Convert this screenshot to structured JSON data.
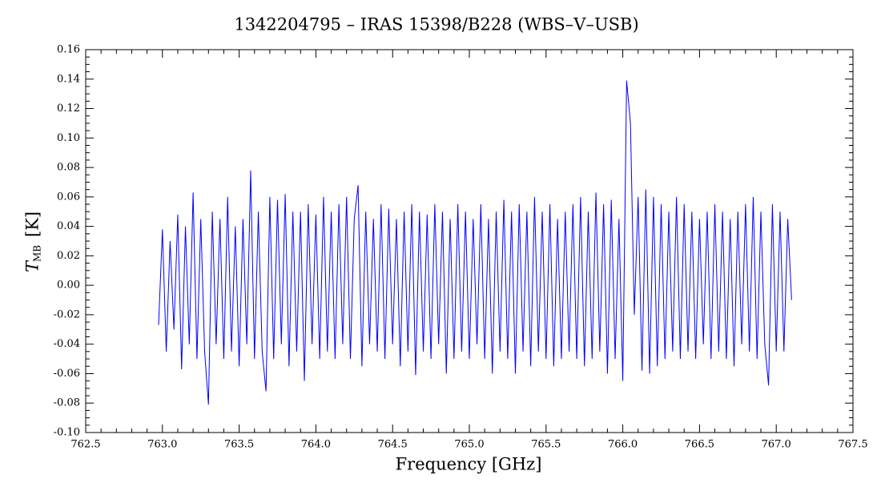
{
  "chart_data": {
    "type": "line",
    "title": "1342204795 – IRAS 15398/B228 (WBS–V–USB)",
    "x_label": "Frequency [GHz]",
    "y_label": {
      "symbol": "T",
      "subscript": "MB",
      "unit": "[K]"
    },
    "color": "#0000ff",
    "xlim": [
      762.5,
      767.5
    ],
    "ylim": [
      -0.1,
      0.16
    ],
    "xticks": [
      {
        "value": 762.5,
        "label": "762.5"
      },
      {
        "value": 763.0,
        "label": "763.0"
      },
      {
        "value": 763.5,
        "label": "763.5"
      },
      {
        "value": 764.0,
        "label": "764.0"
      },
      {
        "value": 764.5,
        "label": "764.5"
      },
      {
        "value": 765.0,
        "label": "765.0"
      },
      {
        "value": 765.5,
        "label": "765.5"
      },
      {
        "value": 766.0,
        "label": "766.0"
      },
      {
        "value": 766.5,
        "label": "766.5"
      },
      {
        "value": 767.0,
        "label": "767.0"
      },
      {
        "value": 767.5,
        "label": "767.5"
      }
    ],
    "yticks": [
      {
        "value": -0.1,
        "label": "-0.10"
      },
      {
        "value": -0.08,
        "label": "-0.08"
      },
      {
        "value": -0.06,
        "label": "-0.06"
      },
      {
        "value": -0.04,
        "label": "-0.04"
      },
      {
        "value": -0.02,
        "label": "-0.02"
      },
      {
        "value": 0.0,
        "label": "0.00"
      },
      {
        "value": 0.02,
        "label": "0.02"
      },
      {
        "value": 0.04,
        "label": "0.04"
      },
      {
        "value": 0.06,
        "label": "0.06"
      },
      {
        "value": 0.08,
        "label": "0.08"
      },
      {
        "value": 0.1,
        "label": "0.10"
      },
      {
        "value": 0.12,
        "label": "0.12"
      },
      {
        "value": 0.14,
        "label": "0.14"
      },
      {
        "value": 0.16,
        "label": "0.16"
      }
    ],
    "x": [
      762.975,
      763.0,
      763.025,
      763.05,
      763.075,
      763.1,
      763.125,
      763.15,
      763.175,
      763.2,
      763.225,
      763.25,
      763.275,
      763.3,
      763.325,
      763.35,
      763.375,
      763.4,
      763.425,
      763.45,
      763.475,
      763.5,
      763.525,
      763.55,
      763.575,
      763.6,
      763.625,
      763.65,
      763.675,
      763.7,
      763.725,
      763.75,
      763.775,
      763.8,
      763.825,
      763.85,
      763.875,
      763.9,
      763.925,
      763.95,
      763.975,
      764.0,
      764.025,
      764.05,
      764.075,
      764.1,
      764.125,
      764.15,
      764.175,
      764.2,
      764.225,
      764.25,
      764.275,
      764.3,
      764.325,
      764.35,
      764.375,
      764.4,
      764.425,
      764.45,
      764.475,
      764.5,
      764.525,
      764.55,
      764.575,
      764.6,
      764.625,
      764.65,
      764.675,
      764.7,
      764.725,
      764.75,
      764.775,
      764.8,
      764.825,
      764.85,
      764.875,
      764.9,
      764.925,
      764.95,
      764.975,
      765.0,
      765.025,
      765.05,
      765.075,
      765.1,
      765.125,
      765.15,
      765.175,
      765.2,
      765.225,
      765.25,
      765.275,
      765.3,
      765.325,
      765.35,
      765.375,
      765.4,
      765.425,
      765.45,
      765.475,
      765.5,
      765.525,
      765.55,
      765.575,
      765.6,
      765.625,
      765.65,
      765.675,
      765.7,
      765.725,
      765.75,
      765.775,
      765.8,
      765.825,
      765.85,
      765.875,
      765.9,
      765.925,
      765.95,
      765.975,
      766.0,
      766.025,
      766.05,
      766.075,
      766.1,
      766.125,
      766.15,
      766.175,
      766.2,
      766.225,
      766.25,
      766.275,
      766.3,
      766.325,
      766.35,
      766.375,
      766.4,
      766.425,
      766.45,
      766.475,
      766.5,
      766.525,
      766.55,
      766.575,
      766.6,
      766.625,
      766.65,
      766.675,
      766.7,
      766.725,
      766.75,
      766.775,
      766.8,
      766.825,
      766.85,
      766.875,
      766.9,
      766.925,
      766.95,
      766.975,
      767.0,
      767.025,
      767.05,
      767.075,
      767.1
    ],
    "values": [
      -0.027,
      0.038,
      -0.045,
      0.03,
      -0.03,
      0.048,
      -0.057,
      0.04,
      -0.04,
      0.063,
      -0.05,
      0.045,
      -0.045,
      -0.081,
      0.05,
      -0.04,
      0.045,
      -0.05,
      0.06,
      -0.045,
      0.04,
      -0.055,
      0.045,
      -0.04,
      0.078,
      -0.05,
      0.05,
      -0.045,
      -0.072,
      0.06,
      -0.05,
      0.058,
      -0.04,
      0.062,
      -0.055,
      0.05,
      -0.045,
      0.05,
      -0.065,
      0.055,
      -0.04,
      0.048,
      -0.05,
      0.06,
      -0.045,
      0.05,
      -0.05,
      0.055,
      -0.04,
      0.06,
      -0.05,
      0.045,
      0.068,
      -0.055,
      0.05,
      -0.04,
      0.045,
      -0.045,
      0.055,
      -0.05,
      0.052,
      -0.04,
      0.045,
      -0.055,
      0.05,
      -0.045,
      0.055,
      -0.061,
      0.05,
      -0.045,
      0.048,
      -0.05,
      0.055,
      -0.04,
      0.05,
      -0.06,
      0.045,
      -0.05,
      0.055,
      -0.045,
      0.05,
      -0.05,
      0.045,
      -0.04,
      0.055,
      -0.05,
      0.045,
      -0.06,
      0.05,
      -0.045,
      0.058,
      -0.05,
      0.05,
      -0.06,
      0.055,
      -0.045,
      0.05,
      -0.055,
      0.06,
      -0.045,
      0.05,
      -0.05,
      0.055,
      -0.055,
      0.045,
      -0.05,
      0.05,
      -0.045,
      0.055,
      -0.05,
      0.06,
      -0.055,
      0.05,
      -0.05,
      0.063,
      -0.045,
      0.055,
      -0.06,
      0.058,
      -0.05,
      0.045,
      -0.065,
      0.139,
      0.11,
      -0.02,
      0.06,
      -0.058,
      0.065,
      -0.06,
      0.06,
      -0.055,
      0.055,
      -0.05,
      0.05,
      -0.045,
      0.06,
      -0.05,
      0.055,
      -0.045,
      0.05,
      -0.05,
      0.045,
      -0.04,
      0.05,
      -0.05,
      0.055,
      -0.045,
      0.05,
      -0.05,
      0.045,
      -0.055,
      0.05,
      -0.04,
      0.055,
      -0.045,
      0.06,
      -0.05,
      0.05,
      -0.04,
      -0.068,
      0.055,
      -0.045,
      0.05,
      -0.045,
      0.045,
      -0.01
    ]
  }
}
